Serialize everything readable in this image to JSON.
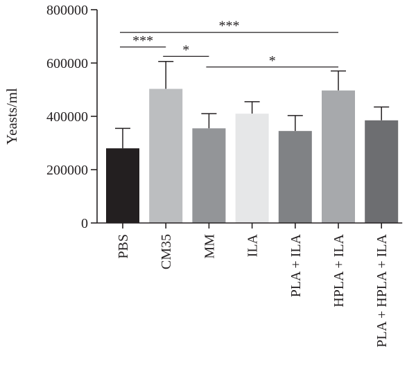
{
  "chart_data": {
    "type": "bar",
    "title": "",
    "xlabel": "",
    "ylabel": "Yeasts/ml",
    "ylim": [
      0,
      800000
    ],
    "yticks": [
      0,
      200000,
      400000,
      600000,
      800000
    ],
    "ytick_labels": [
      "0",
      "200000",
      "400000",
      "600000",
      "800000"
    ],
    "grid": false,
    "legend": "none",
    "categories": [
      "PBS",
      "CM35",
      "MM",
      "ILA",
      "PLA + ILA",
      "HPLA + ILA",
      "PLA + HPLA + ILA"
    ],
    "values": [
      280000,
      503000,
      355000,
      410000,
      345000,
      497000,
      385000
    ],
    "errors": [
      75000,
      103000,
      55000,
      45000,
      58000,
      73000,
      50000
    ],
    "colors": [
      "#231f20",
      "#bcbec0",
      "#939598",
      "#e6e7e8",
      "#808285",
      "#a7a9ac",
      "#6d6e71"
    ],
    "significance": [
      {
        "from": 0,
        "to": 5,
        "label": "***",
        "y": 715000
      },
      {
        "from": 0,
        "to": 1,
        "label": "***",
        "y": 660000
      },
      {
        "from": 1,
        "to": 2,
        "label": "*",
        "y": 625000
      },
      {
        "from": 2,
        "to": 5,
        "label": "*",
        "y": 585000
      }
    ]
  }
}
